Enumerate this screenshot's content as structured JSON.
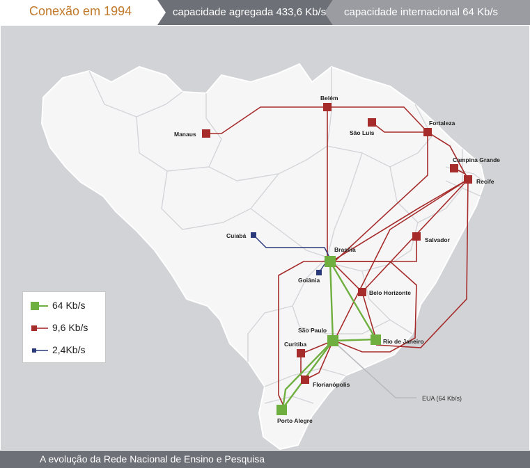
{
  "header": {
    "title": "Conexão em 1994",
    "aggregate": "capacidade agregada 433,6 Kb/s",
    "international": "capacidade internacional  64 Kb/s"
  },
  "footer": {
    "caption": "A evolução da Rede Nacional de Ensino e Pesquisa"
  },
  "legend": {
    "items": [
      {
        "label": "64 Kb/s",
        "color": "#6faf3f"
      },
      {
        "label": "9,6 Kb/s",
        "color": "#a62b2b"
      },
      {
        "label": "2,4Kb/s",
        "color": "#2a3a7a"
      }
    ]
  },
  "cities": {
    "belem": "Belém",
    "manaus": "Manaus",
    "sao_luis": "São Luís",
    "fortaleza": "Fortaleza",
    "campina_grande": "Campina Grande",
    "recife": "Recife",
    "salvador": "Salvador",
    "cuiaba": "Cuiabá",
    "brasilia": "Brasília",
    "goiania": "Goiânia",
    "belo_horizonte": "Belo Horizonte",
    "sao_paulo": "São Paulo",
    "rio_de_janeiro": "Rio de Janeiro",
    "curitiba": "Curitiba",
    "florianopolis": "Florianópolis",
    "porto_alegre": "Porto Alegre"
  },
  "international_link": {
    "label": "EUA  (64 Kb/s)"
  },
  "colors": {
    "header_dark": "#6d7077",
    "header_light": "#9a9ca1",
    "title": "#c0792a",
    "land_brazil": "#f6f6f7",
    "land_other": "#d2d3d6",
    "link_64": "#6faf3f",
    "link_9_6": "#a62b2b",
    "link_2_4": "#2a3a7a",
    "link_intl": "#b9babd"
  }
}
